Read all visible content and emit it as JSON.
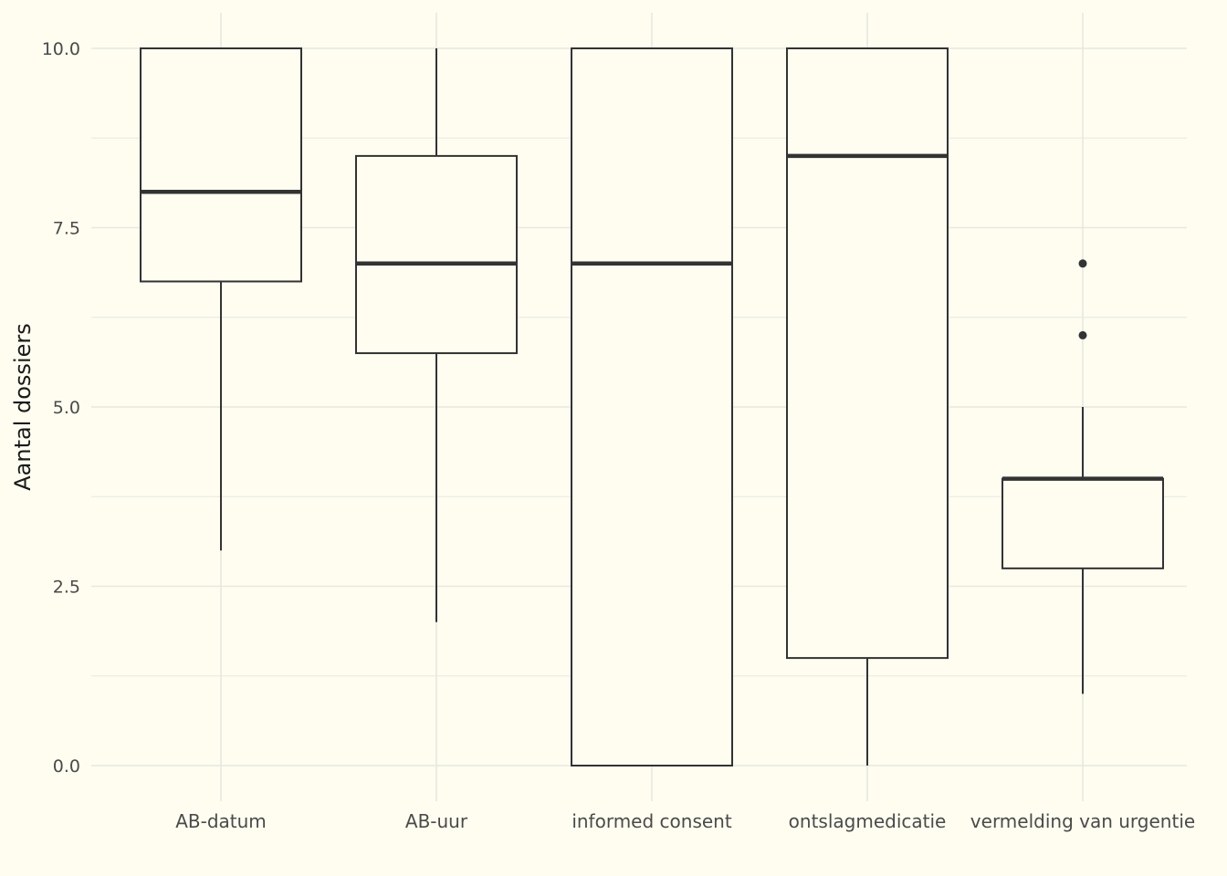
{
  "chart_data": {
    "type": "boxplot",
    "title": "",
    "xlabel": "",
    "ylabel": "Aantal dossiers",
    "ylim": [
      -0.5,
      10.5
    ],
    "yticks": [
      0.0,
      2.5,
      5.0,
      7.5,
      10.0
    ],
    "ytick_labels": [
      "0.0",
      "2.5",
      "5.0",
      "7.5",
      "10.0"
    ],
    "grid": true,
    "categories": [
      "AB-datum",
      "AB-uur",
      "informed consent",
      "ontslagmedicatie",
      "vermelding van urgentie"
    ],
    "boxes": [
      {
        "category": "AB-datum",
        "whisker_low": 3.0,
        "q1": 6.75,
        "median": 8.0,
        "q3": 10.0,
        "whisker_high": 10.0,
        "outliers": []
      },
      {
        "category": "AB-uur",
        "whisker_low": 2.0,
        "q1": 5.75,
        "median": 7.0,
        "q3": 8.5,
        "whisker_high": 10.0,
        "outliers": []
      },
      {
        "category": "informed consent",
        "whisker_low": 0.0,
        "q1": 0.0,
        "median": 7.0,
        "q3": 10.0,
        "whisker_high": 10.0,
        "outliers": []
      },
      {
        "category": "ontslagmedicatie",
        "whisker_low": 0.0,
        "q1": 1.5,
        "median": 8.5,
        "q3": 10.0,
        "whisker_high": 10.0,
        "outliers": []
      },
      {
        "category": "vermelding van urgentie",
        "whisker_low": 1.0,
        "q1": 2.75,
        "median": 4.0,
        "q3": 4.0,
        "whisker_high": 5.0,
        "outliers": [
          6.0,
          7.0
        ]
      }
    ],
    "colors": {
      "background": "#fefdf0",
      "grid": "#e8e8e0",
      "box_stroke": "#333333",
      "box_fill": "#fefdf0"
    }
  }
}
